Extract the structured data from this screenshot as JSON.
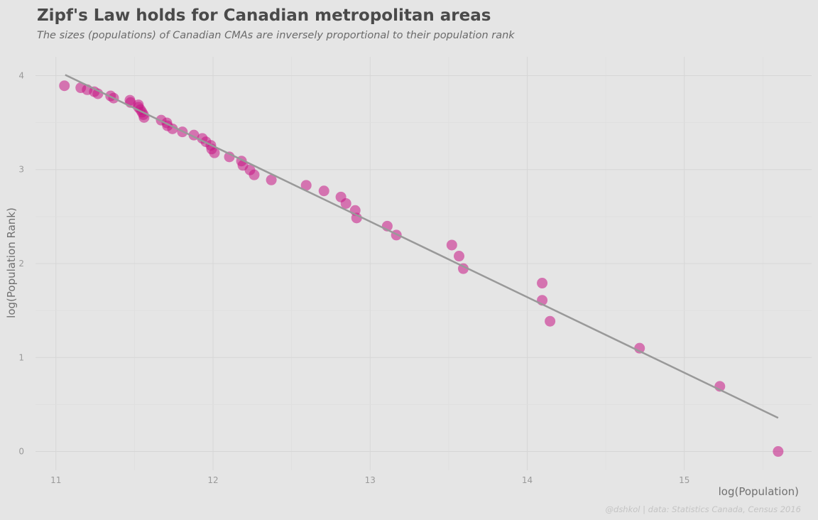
{
  "chart_data": {
    "type": "scatter",
    "title": "Zipf's Law holds for Canadian metropolitan areas",
    "subtitle": "The sizes (populations) of Canadian CMAs are inversely proportional to their population rank",
    "caption": "@dshkol | data: Statistics Canada, Census 2016",
    "xlabel": "log(Population)",
    "ylabel": "log(Population Rank)",
    "xlim": [
      10.87,
      15.81
    ],
    "ylim": [
      -0.2,
      4.2
    ],
    "xticks": [
      11,
      12,
      13,
      14,
      15
    ],
    "yticks": [
      0,
      1,
      2,
      3,
      4
    ],
    "grid": true,
    "point_color": "#c71585",
    "line_color": "#999999",
    "points": [
      [
        15.597,
        0.0
      ],
      [
        15.226,
        0.693
      ],
      [
        14.715,
        1.099
      ],
      [
        14.145,
        1.386
      ],
      [
        14.095,
        1.609
      ],
      [
        14.095,
        1.792
      ],
      [
        13.593,
        1.946
      ],
      [
        13.566,
        2.079
      ],
      [
        13.52,
        2.197
      ],
      [
        13.167,
        2.303
      ],
      [
        13.109,
        2.398
      ],
      [
        12.914,
        2.485
      ],
      [
        12.905,
        2.565
      ],
      [
        12.846,
        2.639
      ],
      [
        12.814,
        2.708
      ],
      [
        12.706,
        2.773
      ],
      [
        12.593,
        2.833
      ],
      [
        12.371,
        2.89
      ],
      [
        12.262,
        2.944
      ],
      [
        12.235,
        2.996
      ],
      [
        12.19,
        3.045
      ],
      [
        12.181,
        3.091
      ],
      [
        12.104,
        3.135
      ],
      [
        12.009,
        3.178
      ],
      [
        11.991,
        3.219
      ],
      [
        11.986,
        3.258
      ],
      [
        11.955,
        3.296
      ],
      [
        11.932,
        3.332
      ],
      [
        11.878,
        3.367
      ],
      [
        11.805,
        3.401
      ],
      [
        11.742,
        3.434
      ],
      [
        11.71,
        3.466
      ],
      [
        11.706,
        3.497
      ],
      [
        11.67,
        3.526
      ],
      [
        11.561,
        3.555
      ],
      [
        11.557,
        3.584
      ],
      [
        11.548,
        3.611
      ],
      [
        11.538,
        3.638
      ],
      [
        11.525,
        3.664
      ],
      [
        11.525,
        3.689
      ],
      [
        11.475,
        3.714
      ],
      [
        11.471,
        3.738
      ],
      [
        11.367,
        3.761
      ],
      [
        11.348,
        3.784
      ],
      [
        11.267,
        3.807
      ],
      [
        11.244,
        3.829
      ],
      [
        11.199,
        3.85
      ],
      [
        11.158,
        3.871
      ],
      [
        11.054,
        3.892
      ]
    ],
    "fit_line": [
      [
        11.059,
        4.008
      ],
      [
        15.597,
        0.358
      ]
    ]
  }
}
